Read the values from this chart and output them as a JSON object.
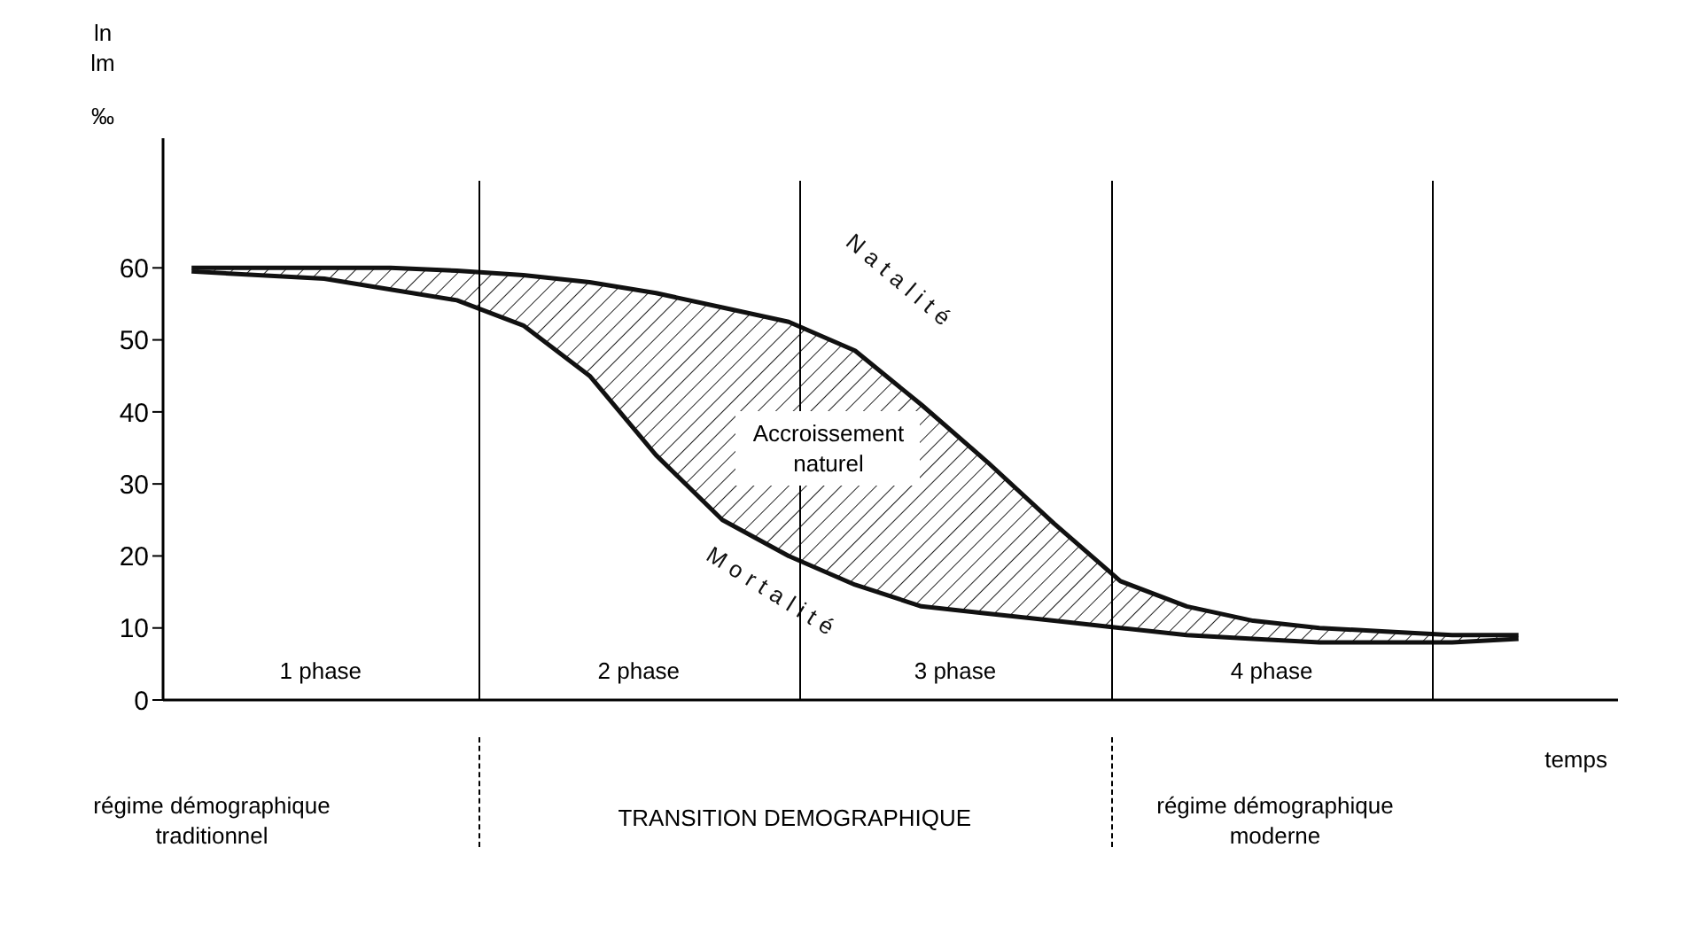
{
  "chart_data": {
    "type": "line",
    "ylabel": "ln lm ‰",
    "xlabel": "temps",
    "categories": [
      null,
      null,
      null,
      null,
      null,
      null,
      null,
      null,
      null,
      null,
      null,
      null,
      null,
      null,
      null,
      null,
      null,
      null,
      null,
      null,
      null
    ],
    "ylim": [
      0,
      78
    ],
    "yticks": [
      0,
      10,
      20,
      30,
      40,
      50,
      60
    ],
    "tick_labels": "y",
    "grid": false,
    "legend": false,
    "marker": "none",
    "line_style": "solid",
    "series": [
      {
        "name": "Natalité",
        "color": "#111111",
        "values": [
          60,
          60,
          60,
          60,
          59.6,
          59,
          58,
          56.5,
          54.5,
          52.5,
          48.5,
          41,
          33,
          24.5,
          16.5,
          13,
          11,
          10,
          9.5,
          9,
          9
        ],
        "lower": [
          59.5,
          59,
          58.5,
          57,
          55.5,
          52,
          45,
          34,
          25,
          20,
          16,
          13,
          12,
          11,
          10,
          9,
          8.5,
          8,
          8,
          8,
          8.5
        ],
        "upper": [
          60,
          60,
          60,
          60,
          59.6,
          59,
          58,
          56.5,
          54.5,
          52.5,
          48.5,
          41,
          33,
          24.5,
          16.5,
          13,
          11,
          10,
          9.5,
          9,
          9
        ]
      },
      {
        "name": "Mortalité",
        "color": "#111111",
        "values": [
          59.5,
          59,
          58.5,
          57,
          55.5,
          52,
          45,
          34,
          25,
          20,
          16,
          13,
          12,
          11,
          10,
          9,
          8.5,
          8,
          8,
          8,
          8.5
        ]
      }
    ],
    "annotations": [
      "Accroissement naturel",
      "1 phase",
      "2 phase",
      "3 phase",
      "4 phase",
      "régime démographique traditionnel",
      "TRANSITION DEMOGRAPHIQUE",
      "régime démographique moderne"
    ]
  }
}
